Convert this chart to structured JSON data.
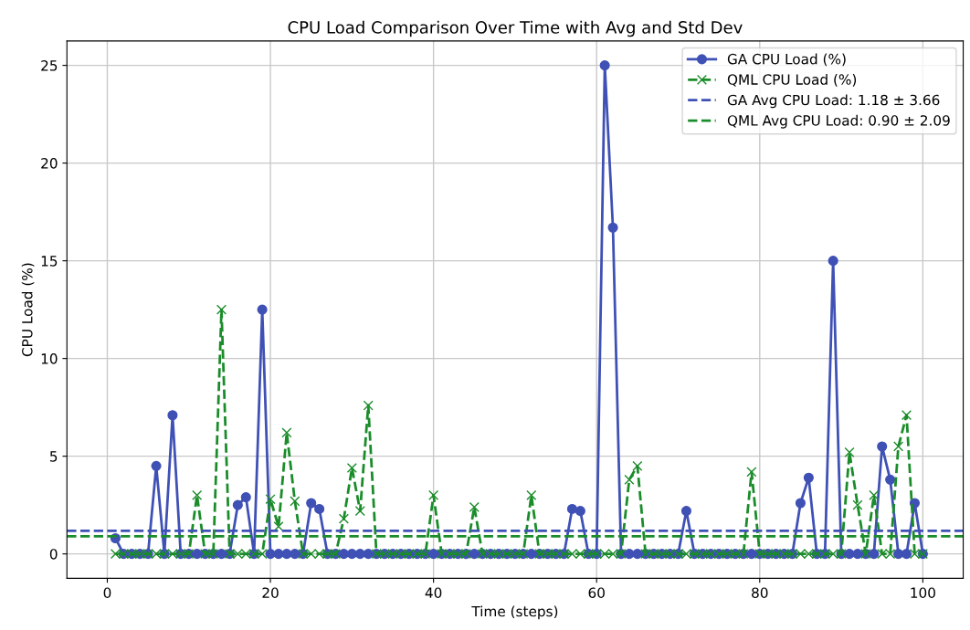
{
  "chart_data": {
    "type": "line",
    "title": "CPU Load Comparison Over Time with Avg and Std Dev",
    "xlabel": "Time (steps)",
    "ylabel": "CPU Load (%)",
    "x": [
      1,
      2,
      3,
      4,
      5,
      6,
      7,
      8,
      9,
      10,
      11,
      12,
      13,
      14,
      15,
      16,
      17,
      18,
      19,
      20,
      21,
      22,
      23,
      24,
      25,
      26,
      27,
      28,
      29,
      30,
      31,
      32,
      33,
      34,
      35,
      36,
      37,
      38,
      39,
      40,
      41,
      42,
      43,
      44,
      45,
      46,
      47,
      48,
      49,
      50,
      51,
      52,
      53,
      54,
      55,
      56,
      57,
      58,
      59,
      60,
      61,
      62,
      63,
      64,
      65,
      66,
      67,
      68,
      69,
      70,
      71,
      72,
      73,
      74,
      75,
      76,
      77,
      78,
      79,
      80,
      81,
      82,
      83,
      84,
      85,
      86,
      87,
      88,
      89,
      90,
      91,
      92,
      93,
      94,
      95,
      96,
      97,
      98,
      99,
      100
    ],
    "series": [
      {
        "name": "GA CPU Load (%)",
        "color": "#3f51b5",
        "marker": "circle",
        "line_style": "solid",
        "values": [
          0.8,
          0,
          0,
          0,
          0,
          4.5,
          0,
          7.1,
          0,
          0,
          0,
          0,
          0,
          0,
          0,
          2.5,
          2.9,
          0,
          12.5,
          0,
          0,
          0,
          0,
          0,
          2.6,
          2.3,
          0,
          0,
          0,
          0,
          0,
          0,
          0,
          0,
          0,
          0,
          0,
          0,
          0,
          0,
          0,
          0,
          0,
          0,
          0,
          0,
          0,
          0,
          0,
          0,
          0,
          0,
          0,
          0,
          0,
          0,
          2.3,
          2.2,
          0,
          0,
          25,
          16.7,
          0,
          0,
          0,
          0,
          0,
          0,
          0,
          0,
          2.2,
          0,
          0,
          0,
          0,
          0,
          0,
          0,
          0,
          0,
          0,
          0,
          0,
          0,
          2.6,
          3.9,
          0,
          0,
          15,
          0,
          0,
          0,
          0,
          0,
          5.5,
          3.8,
          0,
          0,
          2.6,
          0
        ]
      },
      {
        "name": "QML CPU Load (%)",
        "color": "#1a8c2a",
        "marker": "cross",
        "line_style": "dashed",
        "values": [
          0,
          0,
          0,
          0,
          0,
          0,
          0,
          0,
          0,
          0,
          3.0,
          0,
          0,
          12.5,
          0,
          0,
          0,
          0,
          0,
          2.8,
          1.4,
          6.2,
          2.7,
          0,
          0,
          0,
          0,
          0,
          1.8,
          4.4,
          2.2,
          7.6,
          0,
          0,
          0,
          0,
          0,
          0,
          0,
          3.0,
          0,
          0,
          0,
          0,
          2.4,
          0,
          0,
          0,
          0,
          0,
          0,
          3.0,
          0,
          0,
          0,
          0,
          0,
          0,
          0,
          0,
          0,
          0,
          0,
          3.8,
          4.5,
          0,
          0,
          0,
          0,
          0,
          0,
          0,
          0,
          0,
          0,
          0,
          0,
          0,
          4.2,
          0,
          0,
          0,
          0,
          0,
          0,
          0,
          0,
          0,
          0,
          0,
          5.2,
          2.5,
          0,
          3.0,
          0,
          0,
          5.5,
          7.1,
          0,
          0
        ]
      }
    ],
    "ref_lines": [
      {
        "axis": "y",
        "value": 1.18,
        "label": "GA Avg CPU Load: 1.18 ± 3.66",
        "color": "#3f51b5",
        "line_style": "dashed"
      },
      {
        "axis": "y",
        "value": 0.9,
        "label": "QML Avg CPU Load: 0.90 ± 2.09",
        "color": "#1a8c2a",
        "line_style": "dashed"
      }
    ],
    "xlim": [
      -4.95,
      104.95
    ],
    "ylim": [
      -1.25,
      26.25
    ],
    "xticks": [
      0,
      20,
      40,
      60,
      80,
      100
    ],
    "yticks": [
      0,
      5,
      10,
      15,
      20,
      25
    ],
    "grid": true,
    "legend": "top right"
  }
}
